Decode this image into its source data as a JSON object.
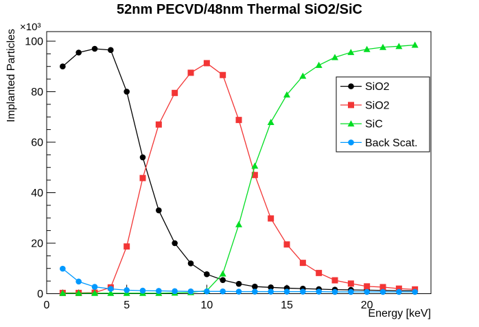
{
  "title": "52nm PECVD/48nm Thermal SiO2/SiC",
  "y_axis": {
    "title": "Implanted Particles",
    "multiplier": "×10³",
    "major_ticks": [
      0,
      20,
      40,
      60,
      80,
      100
    ],
    "minor_step": 5,
    "range": [
      0,
      103.8
    ]
  },
  "x_axis": {
    "title": "Energy [keV]",
    "major_ticks": [
      0,
      5,
      10,
      15,
      20
    ],
    "minor_step": 1,
    "range": [
      0,
      24
    ]
  },
  "legend": {
    "entries": [
      {
        "label": "SiO2",
        "color": "#000000",
        "marker": "circle"
      },
      {
        "label": "SiO2",
        "color": "#f23535",
        "marker": "square"
      },
      {
        "label": "SiC",
        "color": "#00dd22",
        "marker": "triangle"
      },
      {
        "label": "Back Scat.",
        "color": "#0099ff",
        "marker": "circle"
      }
    ]
  },
  "chart_data": {
    "type": "line",
    "title": "52nm PECVD/48nm Thermal SiO2/SiC",
    "xlabel": "Energy [keV]",
    "ylabel": "Implanted Particles",
    "y_unit_multiplier": 1000,
    "xlim": [
      0,
      24
    ],
    "ylim": [
      0,
      103.8
    ],
    "grid": false,
    "legend_position": "right-middle",
    "x": [
      1,
      2,
      3,
      4,
      5,
      6,
      7,
      8,
      9,
      10,
      11,
      12,
      13,
      14,
      15,
      16,
      17,
      18,
      19,
      20,
      21,
      22,
      23
    ],
    "series": [
      {
        "name": "SiO2",
        "marker": "circle",
        "color": "#000000",
        "values": [
          90,
          95.5,
          97,
          96.5,
          80,
          54,
          33,
          20,
          12,
          7.7,
          5.4,
          3.9,
          2.8,
          2.5,
          2.2,
          2,
          1.8,
          1.6,
          1.5,
          1.4,
          1.3,
          1.2,
          1.2
        ]
      },
      {
        "name": "SiO2",
        "marker": "square",
        "color": "#f23535",
        "values": [
          0.3,
          0.3,
          0.4,
          2.5,
          18.7,
          45.8,
          67,
          79.5,
          87.5,
          91.3,
          86.6,
          68.8,
          47,
          29.8,
          19.5,
          12.2,
          8.2,
          5.3,
          4,
          2.9,
          2.6,
          2,
          1.7
        ]
      },
      {
        "name": "SiC",
        "marker": "triangle",
        "color": "#00dd22",
        "values": [
          0.2,
          0.2,
          0.2,
          0.2,
          0.2,
          0.2,
          0.2,
          0.3,
          0.5,
          1.2,
          7.9,
          27.4,
          50.6,
          67.9,
          78.8,
          86.2,
          90.5,
          93.6,
          95.6,
          96.8,
          97.6,
          98,
          98.5
        ]
      },
      {
        "name": "Back Scat.",
        "marker": "circle",
        "color": "#0099ff",
        "values": [
          9.9,
          4.8,
          2.7,
          1.9,
          1.4,
          1.2,
          1.1,
          1,
          0.9,
          0.9,
          0.9,
          0.8,
          0.8,
          0.8,
          0.8,
          0.8,
          0.8,
          0.7,
          0.7,
          0.7,
          0.7,
          0.7,
          0.7
        ]
      }
    ]
  }
}
